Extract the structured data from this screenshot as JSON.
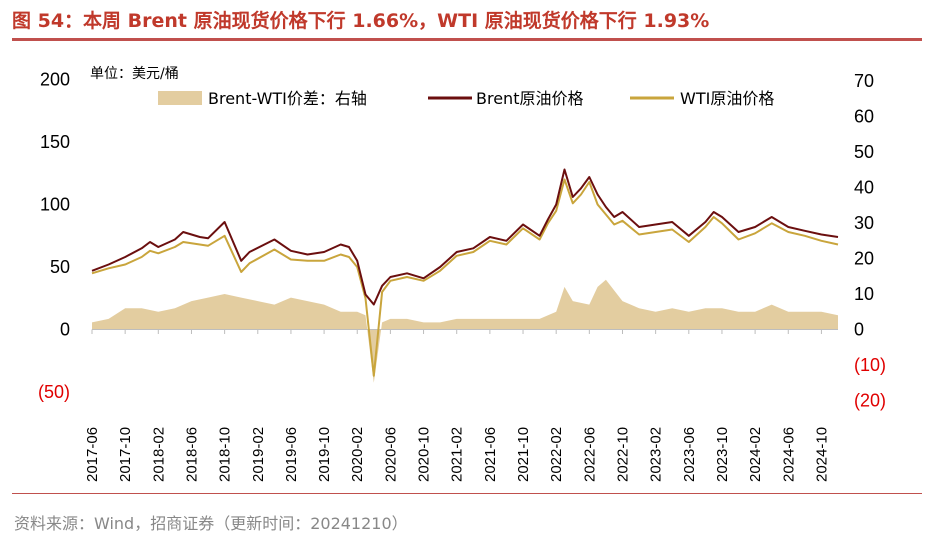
{
  "figure": {
    "title": "图 54：本周 Brent 原油现货价格下行 1.66%，WTI 原油现货价格下行 1.93%",
    "source": "资料来源：Wind，招商证券（更新时间：20241210）",
    "colors": {
      "rule": "#c0504d",
      "title": "#c0392b",
      "negative_tick": "#e00000"
    }
  },
  "chart_data": {
    "type": "line",
    "unit_label": "单位：美元/桶",
    "left_axis": {
      "ylim": [
        -50,
        200
      ],
      "ticks": [
        -50,
        0,
        50,
        100,
        150,
        200
      ],
      "tick_labels": [
        "(50)",
        "0",
        "50",
        "100",
        "150",
        "200"
      ]
    },
    "right_axis": {
      "ylim": [
        -20,
        70
      ],
      "ticks": [
        -20,
        -10,
        0,
        10,
        20,
        30,
        40,
        50,
        60,
        70
      ],
      "tick_labels": [
        "(20)",
        "(10)",
        "0",
        "10",
        "20",
        "30",
        "40",
        "50",
        "60",
        "70"
      ]
    },
    "x_range": [
      "2017-06",
      "2024-12"
    ],
    "x_tick_labels": [
      "2017-06",
      "2017-10",
      "2018-02",
      "2018-06",
      "2018-10",
      "2019-02",
      "2019-06",
      "2019-10",
      "2020-02",
      "2020-06",
      "2020-10",
      "2021-02",
      "2021-06",
      "2021-10",
      "2022-02",
      "2022-06",
      "2022-10",
      "2023-02",
      "2023-06",
      "2023-10",
      "2024-02",
      "2024-06",
      "2024-10"
    ],
    "legend": {
      "placement": "top"
    },
    "series": [
      {
        "name": "Brent-WTI价差：右轴",
        "type": "area",
        "axis": "right",
        "color": "#e3cda0",
        "x": [
          "2017-06",
          "2017-08",
          "2017-10",
          "2017-12",
          "2018-02",
          "2018-04",
          "2018-06",
          "2018-08",
          "2018-10",
          "2018-12",
          "2019-02",
          "2019-04",
          "2019-06",
          "2019-08",
          "2019-10",
          "2019-12",
          "2020-02",
          "2020-03",
          "2020-04",
          "2020-05",
          "2020-06",
          "2020-08",
          "2020-10",
          "2020-12",
          "2021-02",
          "2021-04",
          "2021-06",
          "2021-08",
          "2021-10",
          "2021-12",
          "2022-02",
          "2022-03",
          "2022-04",
          "2022-06",
          "2022-07",
          "2022-08",
          "2022-10",
          "2022-12",
          "2023-02",
          "2023-04",
          "2023-06",
          "2023-08",
          "2023-10",
          "2023-12",
          "2024-02",
          "2024-04",
          "2024-06",
          "2024-08",
          "2024-10",
          "2024-12"
        ],
        "values": [
          2,
          3,
          6,
          6,
          5,
          6,
          8,
          9,
          10,
          9,
          8,
          7,
          9,
          8,
          7,
          5,
          5,
          4,
          -15,
          2,
          3,
          3,
          2,
          2,
          3,
          3,
          3,
          3,
          3,
          3,
          5,
          12,
          8,
          7,
          12,
          14,
          8,
          6,
          5,
          6,
          5,
          6,
          6,
          5,
          5,
          7,
          5,
          5,
          5,
          4
        ]
      },
      {
        "name": "Brent原油价格",
        "type": "line",
        "axis": "left",
        "color": "#6b0f0f",
        "x": [
          "2017-06",
          "2017-08",
          "2017-10",
          "2017-12",
          "2018-01",
          "2018-02",
          "2018-04",
          "2018-05",
          "2018-07",
          "2018-08",
          "2018-10",
          "2018-12",
          "2019-01",
          "2019-04",
          "2019-06",
          "2019-08",
          "2019-10",
          "2019-12",
          "2020-01",
          "2020-02",
          "2020-03",
          "2020-04",
          "2020-05",
          "2020-06",
          "2020-08",
          "2020-10",
          "2020-12",
          "2021-02",
          "2021-04",
          "2021-06",
          "2021-08",
          "2021-10",
          "2021-12",
          "2022-01",
          "2022-02",
          "2022-03",
          "2022-04",
          "2022-05",
          "2022-06",
          "2022-07",
          "2022-08",
          "2022-09",
          "2022-10",
          "2022-12",
          "2023-02",
          "2023-04",
          "2023-06",
          "2023-08",
          "2023-09",
          "2023-10",
          "2023-12",
          "2024-02",
          "2024-04",
          "2024-06",
          "2024-08",
          "2024-10",
          "2024-12"
        ],
        "values": [
          47,
          52,
          58,
          65,
          70,
          66,
          72,
          78,
          74,
          73,
          86,
          55,
          62,
          72,
          63,
          60,
          62,
          68,
          66,
          55,
          28,
          20,
          35,
          42,
          45,
          41,
          50,
          62,
          65,
          74,
          71,
          84,
          75,
          88,
          100,
          128,
          106,
          113,
          122,
          108,
          98,
          90,
          94,
          82,
          84,
          86,
          75,
          86,
          94,
          90,
          78,
          82,
          90,
          82,
          79,
          76,
          74
        ]
      },
      {
        "name": "WTI原油价格",
        "type": "line",
        "axis": "left",
        "color": "#c9a53c",
        "x": [
          "2017-06",
          "2017-08",
          "2017-10",
          "2017-12",
          "2018-01",
          "2018-02",
          "2018-04",
          "2018-05",
          "2018-07",
          "2018-08",
          "2018-10",
          "2018-12",
          "2019-01",
          "2019-04",
          "2019-06",
          "2019-08",
          "2019-10",
          "2019-12",
          "2020-01",
          "2020-02",
          "2020-03",
          "2020-04",
          "2020-05",
          "2020-06",
          "2020-08",
          "2020-10",
          "2020-12",
          "2021-02",
          "2021-04",
          "2021-06",
          "2021-08",
          "2021-10",
          "2021-12",
          "2022-01",
          "2022-02",
          "2022-03",
          "2022-04",
          "2022-05",
          "2022-06",
          "2022-07",
          "2022-08",
          "2022-09",
          "2022-10",
          "2022-12",
          "2023-02",
          "2023-04",
          "2023-06",
          "2023-08",
          "2023-09",
          "2023-10",
          "2023-12",
          "2024-02",
          "2024-04",
          "2024-06",
          "2024-08",
          "2024-10",
          "2024-12"
        ],
        "values": [
          45,
          49,
          52,
          58,
          63,
          61,
          66,
          70,
          68,
          67,
          75,
          46,
          53,
          64,
          56,
          55,
          55,
          60,
          58,
          50,
          25,
          -37,
          30,
          39,
          42,
          39,
          47,
          59,
          62,
          71,
          68,
          81,
          72,
          85,
          95,
          120,
          101,
          108,
          118,
          100,
          92,
          84,
          87,
          76,
          78,
          80,
          70,
          82,
          90,
          85,
          72,
          77,
          85,
          78,
          75,
          71,
          68
        ]
      }
    ]
  }
}
